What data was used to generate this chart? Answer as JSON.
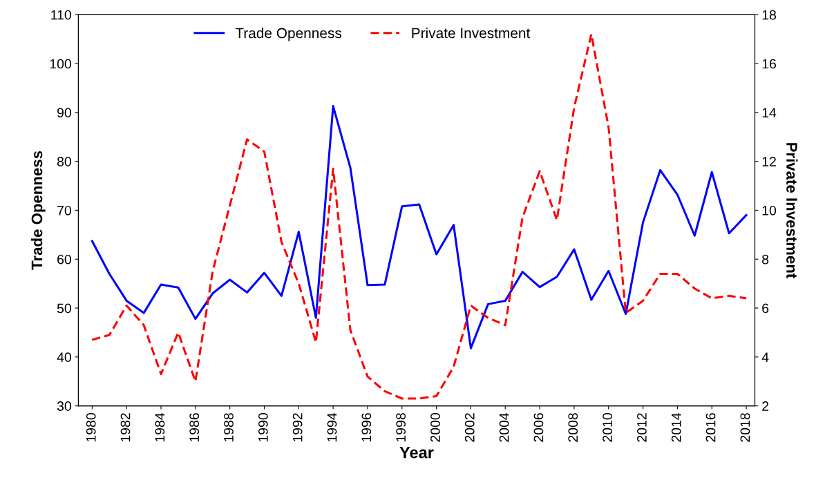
{
  "chart_data": {
    "type": "line",
    "xlabel": "Year",
    "ylabel": "Trade Openness",
    "y2label": "Private Investment",
    "x": [
      1980,
      1981,
      1982,
      1983,
      1984,
      1985,
      1986,
      1987,
      1988,
      1989,
      1990,
      1991,
      1992,
      1993,
      1994,
      1995,
      1996,
      1997,
      1998,
      1999,
      2000,
      2001,
      2002,
      2003,
      2004,
      2005,
      2006,
      2007,
      2008,
      2009,
      2010,
      2011,
      2012,
      2013,
      2014,
      2015,
      2016,
      2017,
      2018
    ],
    "series": [
      {
        "name": "Trade Openness",
        "color": "#0000ff",
        "line_style": "solid",
        "values": [
          63.7,
          57,
          51.5,
          49,
          54.8,
          54.2,
          47.8,
          53,
          55.8,
          53.2,
          57.2,
          52.5,
          65.6,
          48,
          91.3,
          78.7,
          54.7,
          54.8,
          70.8,
          71.2,
          61,
          67,
          41.8,
          50.8,
          51.5,
          57.4,
          54.3,
          56.4,
          62,
          51.7,
          57.6,
          48.8,
          67.5,
          78.2,
          73.2,
          64.8,
          77.8,
          65.3,
          69
        ]
      },
      {
        "name": "Private Investment",
        "color": "#ff0000",
        "line_style": "dashed",
        "axis": "y2",
        "values": [
          4.7,
          4.9,
          6.1,
          5.3,
          3.3,
          5,
          3,
          7.5,
          10.2,
          12.9,
          12.4,
          8.7,
          7,
          4.6,
          11.7,
          5.1,
          3.2,
          2.6,
          2.3,
          2.3,
          2.4,
          3.6,
          6.1,
          5.6,
          5.3,
          9.7,
          11.6,
          9.6,
          14.2,
          17.2,
          13.4,
          5.8,
          6.3,
          7.4,
          7.4,
          6.8,
          6.4,
          6.5,
          6.4
        ]
      }
    ],
    "xlim": [
      1979.2,
      2018.5
    ],
    "xticks": [
      1980,
      1982,
      1984,
      1986,
      1988,
      1990,
      1992,
      1994,
      1996,
      1998,
      2000,
      2002,
      2004,
      2006,
      2008,
      2010,
      2012,
      2014,
      2016,
      2018
    ],
    "ylim": [
      30,
      110
    ],
    "yticks": [
      30,
      40,
      50,
      60,
      70,
      80,
      90,
      100,
      110
    ],
    "y2lim": [
      2,
      18
    ],
    "y2ticks": [
      2,
      4,
      6,
      8,
      10,
      12,
      14,
      16,
      18
    ],
    "grid": false,
    "legend": "top",
    "marker": "none"
  }
}
